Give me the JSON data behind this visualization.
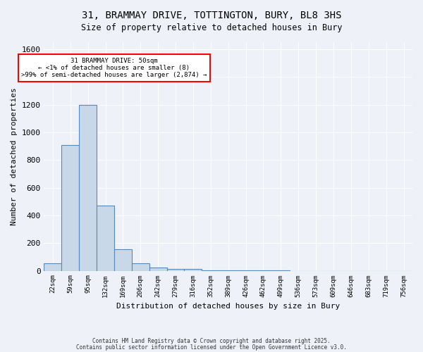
{
  "title_line1": "31, BRAMMAY DRIVE, TOTTINGTON, BURY, BL8 3HS",
  "title_line2": "Size of property relative to detached houses in Bury",
  "xlabel": "Distribution of detached houses by size in Bury",
  "ylabel": "Number of detached properties",
  "bar_values": [
    55,
    910,
    1200,
    470,
    155,
    55,
    25,
    15,
    15,
    5,
    2,
    2,
    1,
    1,
    0,
    0,
    0,
    0,
    0,
    0,
    0
  ],
  "bar_labels": [
    "22sqm",
    "59sqm",
    "95sqm",
    "132sqm",
    "169sqm",
    "206sqm",
    "242sqm",
    "279sqm",
    "316sqm",
    "352sqm",
    "389sqm",
    "426sqm",
    "462sqm",
    "499sqm",
    "536sqm",
    "573sqm",
    "609sqm",
    "646sqm",
    "683sqm",
    "719sqm",
    "756sqm"
  ],
  "bar_color": "#c8d8e8",
  "bar_edge_color": "#5588bb",
  "background_color": "#eef2f8",
  "annotation_line1": "31 BRAMMAY DRIVE: 50sqm",
  "annotation_line2": "← <1% of detached houses are smaller (8)",
  "annotation_line3": ">99% of semi-detached houses are larger (2,874) →",
  "ylim": [
    0,
    1650
  ],
  "yticks": [
    0,
    200,
    400,
    600,
    800,
    1000,
    1200,
    1400,
    1600
  ],
  "footnote_line1": "Contains HM Land Registry data © Crown copyright and database right 2025.",
  "footnote_line2": "Contains public sector information licensed under the Open Government Licence v3.0."
}
